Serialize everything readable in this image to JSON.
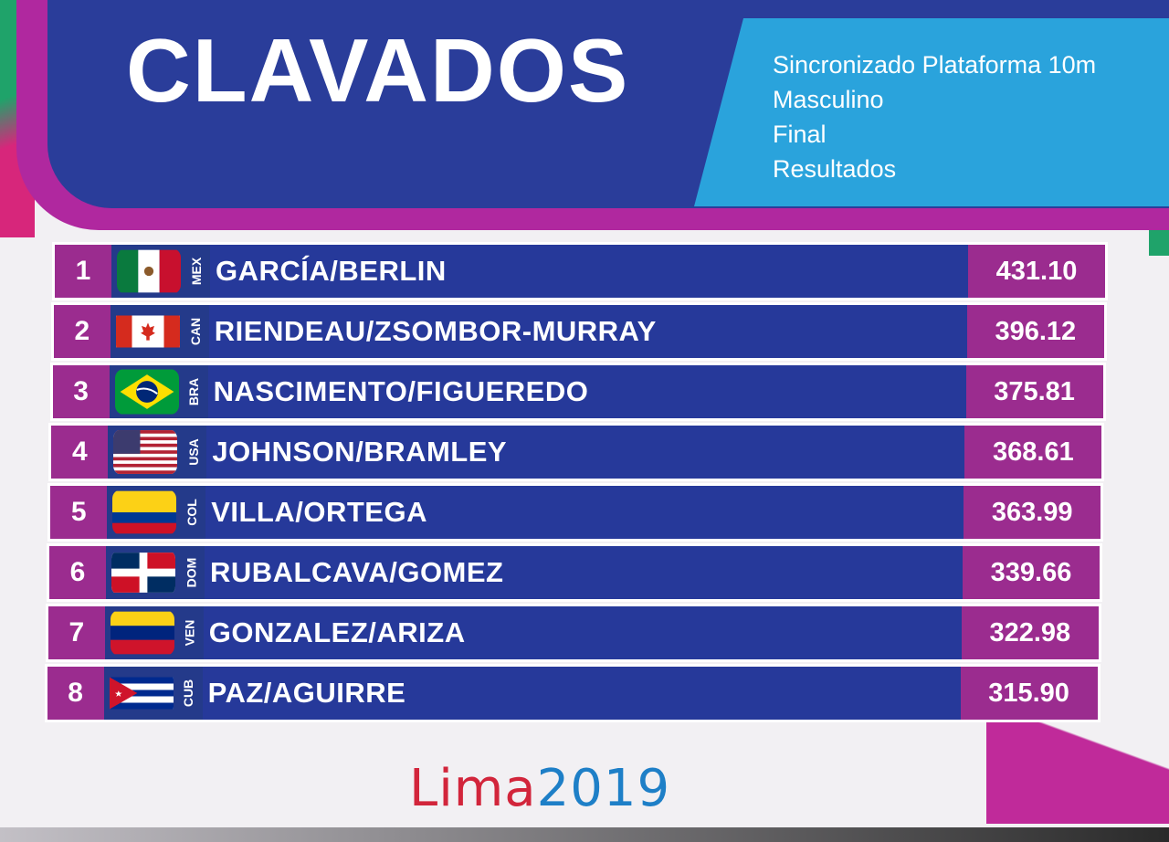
{
  "header": {
    "title": "CLAVADOS",
    "event_lines": [
      "Sincronizado Plataforma 10m",
      "Masculino",
      "Final",
      "Resultados"
    ]
  },
  "results": [
    {
      "rank": "1",
      "country": "MEX",
      "flag": "mexico-flag",
      "names": "GARCÍA/BERLIN",
      "score": "431.10"
    },
    {
      "rank": "2",
      "country": "CAN",
      "flag": "canada-flag",
      "names": "RIENDEAU/ZSOMBOR-MURRAY",
      "score": "396.12"
    },
    {
      "rank": "3",
      "country": "BRA",
      "flag": "brazil-flag",
      "names": "NASCIMENTO/FIGUEREDO",
      "score": "375.81"
    },
    {
      "rank": "4",
      "country": "USA",
      "flag": "usa-flag",
      "names": "JOHNSON/BRAMLEY",
      "score": "368.61"
    },
    {
      "rank": "5",
      "country": "COL",
      "flag": "colombia-flag",
      "names": "VILLA/ORTEGA",
      "score": "363.99"
    },
    {
      "rank": "6",
      "country": "DOM",
      "flag": "dominican-republic-flag",
      "names": "RUBALCAVA/GOMEZ",
      "score": "339.66"
    },
    {
      "rank": "7",
      "country": "VEN",
      "flag": "venezuela-flag",
      "names": "GONZALEZ/ARIZA",
      "score": "322.98"
    },
    {
      "rank": "8",
      "country": "CUB",
      "flag": "cuba-flag",
      "names": "PAZ/AGUIRRE",
      "score": "315.90"
    }
  ],
  "footer": {
    "logo_text_1": "Lima",
    "logo_text_2": "2019"
  },
  "colors": {
    "header_blue": "#2a3d9a",
    "header_light_blue": "#2aa3dc",
    "row_blue": "#26399a",
    "accent_magenta": "#9b2c8f",
    "logo_red": "#d2253b",
    "logo_blue": "#1e7fc7"
  }
}
